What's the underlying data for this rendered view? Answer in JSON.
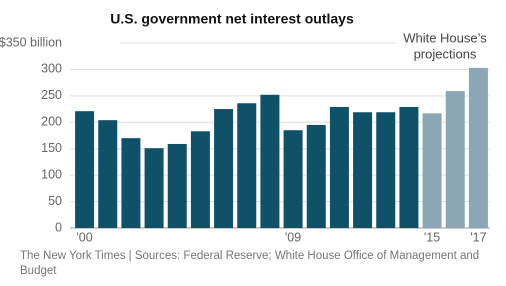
{
  "chart_data": {
    "type": "bar",
    "title": "U.S. government net interest outlays",
    "categories": [
      "'00",
      null,
      null,
      null,
      null,
      null,
      null,
      null,
      null,
      "'09",
      null,
      null,
      null,
      null,
      null,
      "'15",
      null,
      "'17"
    ],
    "values": [
      221,
      204,
      170,
      151,
      159,
      183,
      225,
      236,
      252,
      185,
      195,
      229,
      219,
      219,
      229,
      217,
      259,
      303
    ],
    "colors": [
      "#0f5166",
      "#0f5166",
      "#0f5166",
      "#0f5166",
      "#0f5166",
      "#0f5166",
      "#0f5166",
      "#0f5166",
      "#0f5166",
      "#0f5166",
      "#0f5166",
      "#0f5166",
      "#0f5166",
      "#0f5166",
      "#0f5166",
      "#8ba6b5",
      "#8ba6b5",
      "#8ba6b5"
    ],
    "ylim": [
      0,
      350
    ],
    "yticks": [
      0,
      50,
      100,
      150,
      200,
      250,
      300,
      {
        "value": 350,
        "label": "$350 billion"
      }
    ],
    "grid": true,
    "annotation": [
      "White House’s",
      "projections"
    ],
    "source": "The New York Times | Sources: Federal Reserve; White House Office of Management and Budget"
  }
}
